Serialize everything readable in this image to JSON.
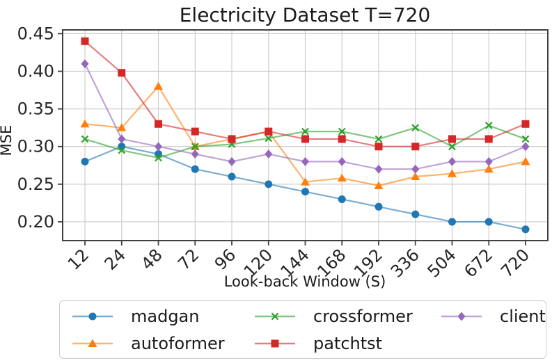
{
  "page": {
    "background": "#ffffff",
    "text_color": "#1a1a1a",
    "grid_color": "#cdcdcd",
    "spine_color": "#404040"
  },
  "chart_data": {
    "type": "line",
    "title": "Electricity Dataset T=720",
    "xlabel": "Look-back Window (S)",
    "ylabel": "MSE",
    "categories": [
      "12",
      "24",
      "48",
      "72",
      "96",
      "120",
      "144",
      "168",
      "192",
      "336",
      "504",
      "672",
      "720"
    ],
    "yticks": [
      0.2,
      0.25,
      0.3,
      0.35,
      0.4,
      0.45
    ],
    "ylim": [
      0.175,
      0.455
    ],
    "grid": true,
    "legend_position": "bottom",
    "xtick_rotation": 45,
    "series": [
      {
        "name": "madgan",
        "color": "#1f77b4",
        "marker": "circle",
        "values": [
          0.28,
          0.3,
          0.29,
          0.27,
          0.26,
          0.25,
          0.24,
          0.23,
          0.22,
          0.21,
          0.2,
          0.2,
          0.19
        ]
      },
      {
        "name": "autoformer",
        "color": "#ff7f0e",
        "marker": "triangle",
        "values": [
          0.33,
          0.325,
          0.38,
          0.3,
          0.31,
          0.32,
          0.253,
          0.258,
          0.248,
          0.26,
          0.264,
          0.27,
          0.28
        ]
      },
      {
        "name": "crossformer",
        "color": "#2ca02c",
        "marker": "x",
        "values": [
          0.31,
          0.295,
          0.285,
          0.3,
          0.303,
          0.311,
          0.32,
          0.32,
          0.31,
          0.325,
          0.3,
          0.328,
          0.31
        ]
      },
      {
        "name": "patchtst",
        "color": "#d62728",
        "marker": "square",
        "values": [
          0.44,
          0.398,
          0.33,
          0.32,
          0.31,
          0.32,
          0.31,
          0.31,
          0.3,
          0.3,
          0.31,
          0.31,
          0.33
        ]
      },
      {
        "name": "client",
        "color": "#9467bd",
        "marker": "diamond",
        "values": [
          0.41,
          0.31,
          0.3,
          0.29,
          0.28,
          0.29,
          0.28,
          0.28,
          0.27,
          0.27,
          0.28,
          0.28,
          0.3
        ]
      }
    ]
  }
}
